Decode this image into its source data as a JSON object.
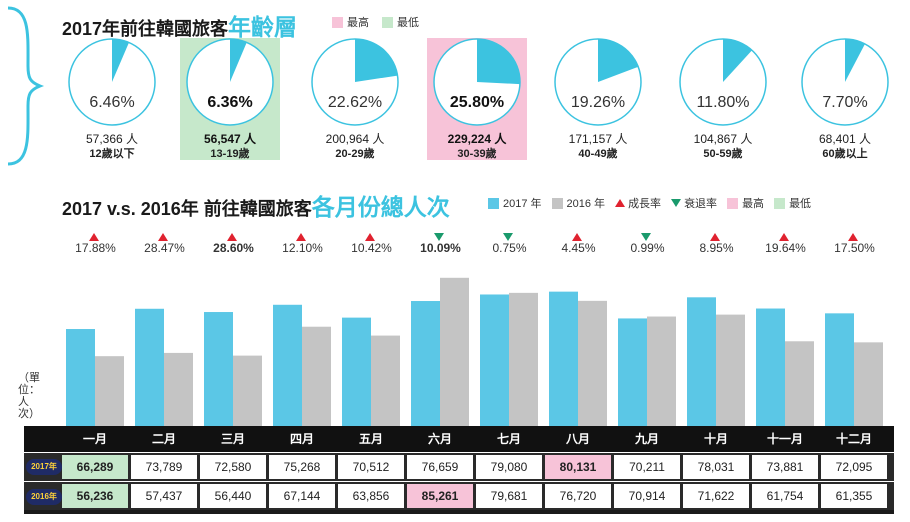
{
  "age_section": {
    "title_prefix": "2017年前往韓國旅客",
    "title_highlight": "年齡層",
    "legend": {
      "max_label": "最高",
      "min_label": "最低"
    },
    "colors": {
      "accent": "#3cc3e0",
      "max": "#f7c3d8",
      "min": "#c6e8cb"
    }
  },
  "monthly_section": {
    "title_prefix": "2017 v.s. 2016年 前往韓國旅客",
    "title_highlight": "各月份總人次",
    "legend": {
      "y2017": "2017 年",
      "y2016": "2016 年",
      "growth": "成長率",
      "decline": "衰退率",
      "max_label": "最高",
      "min_label": "最低"
    },
    "y_unit_label": "（單位：人次）",
    "year_tag_2017": "2017年",
    "year_tag_2016": "2016年",
    "colors": {
      "y2017": "#5bc7e6",
      "y2016": "#c4c4c4",
      "up": "#e0222f",
      "down": "#1a9a6c"
    }
  },
  "chart_data": [
    {
      "type": "pie",
      "title": "2017年前往韓國旅客年齡層",
      "categories": [
        "12歲以下",
        "13-19歲",
        "20-29歲",
        "30-39歲",
        "40-49歲",
        "50-59歲",
        "60歲以上"
      ],
      "values": [
        6.46,
        6.36,
        22.62,
        25.8,
        19.26,
        11.8,
        7.7
      ],
      "value_labels": [
        "6.46%",
        "6.36%",
        "22.62%",
        "25.80%",
        "19.26%",
        "11.80%",
        "7.70%"
      ],
      "counts": [
        "57,366 人",
        "56,547 人",
        "200,964 人",
        "229,224 人",
        "171,157 人",
        "104,867 人",
        "68,401 人"
      ],
      "highlight": [
        "",
        "min",
        "",
        "max",
        "",
        "",
        ""
      ]
    },
    {
      "type": "bar",
      "title": "2017 v.s. 2016年 前往韓國旅客各月份總人次",
      "categories": [
        "一月",
        "二月",
        "三月",
        "四月",
        "五月",
        "六月",
        "七月",
        "八月",
        "九月",
        "十月",
        "十一月",
        "十二月"
      ],
      "series": [
        {
          "name": "2017 年",
          "values": [
            66289,
            73789,
            72580,
            75268,
            70512,
            76659,
            79080,
            80131,
            70211,
            78031,
            73881,
            72095
          ],
          "labels": [
            "66,289",
            "73,789",
            "72,580",
            "75,268",
            "70,512",
            "76,659",
            "79,080",
            "80,131",
            "70,211",
            "78,031",
            "73,881",
            "72,095"
          ]
        },
        {
          "name": "2016 年",
          "values": [
            56236,
            57437,
            56440,
            67144,
            63856,
            85261,
            79681,
            76720,
            70914,
            71622,
            61754,
            61355
          ],
          "labels": [
            "56,236",
            "57,437",
            "56,440",
            "67,144",
            "63,856",
            "85,261",
            "79,681",
            "76,720",
            "70,914",
            "71,622",
            "61,754",
            "61,355"
          ]
        }
      ],
      "rates": [
        "17.88%",
        "28.47%",
        "28.60%",
        "12.10%",
        "10.42%",
        "10.09%",
        "0.75%",
        "4.45%",
        "0.99%",
        "8.95%",
        "19.64%",
        "17.50%"
      ],
      "rate_direction": [
        "up",
        "up",
        "up",
        "up",
        "up",
        "down",
        "down",
        "up",
        "down",
        "up",
        "up",
        "up"
      ],
      "rate_highlight": [
        "",
        "",
        "max",
        "",
        "",
        "min",
        "",
        "",
        "",
        "",
        "",
        ""
      ],
      "cell_highlight_2017": [
        "min",
        "",
        "",
        "",
        "",
        "",
        "",
        "max",
        "",
        "",
        "",
        ""
      ],
      "cell_highlight_2016": [
        "min",
        "",
        "",
        "",
        "",
        "max",
        "",
        "",
        "",
        "",
        "",
        ""
      ],
      "ylim": [
        0,
        90000
      ],
      "grid": false
    }
  ]
}
